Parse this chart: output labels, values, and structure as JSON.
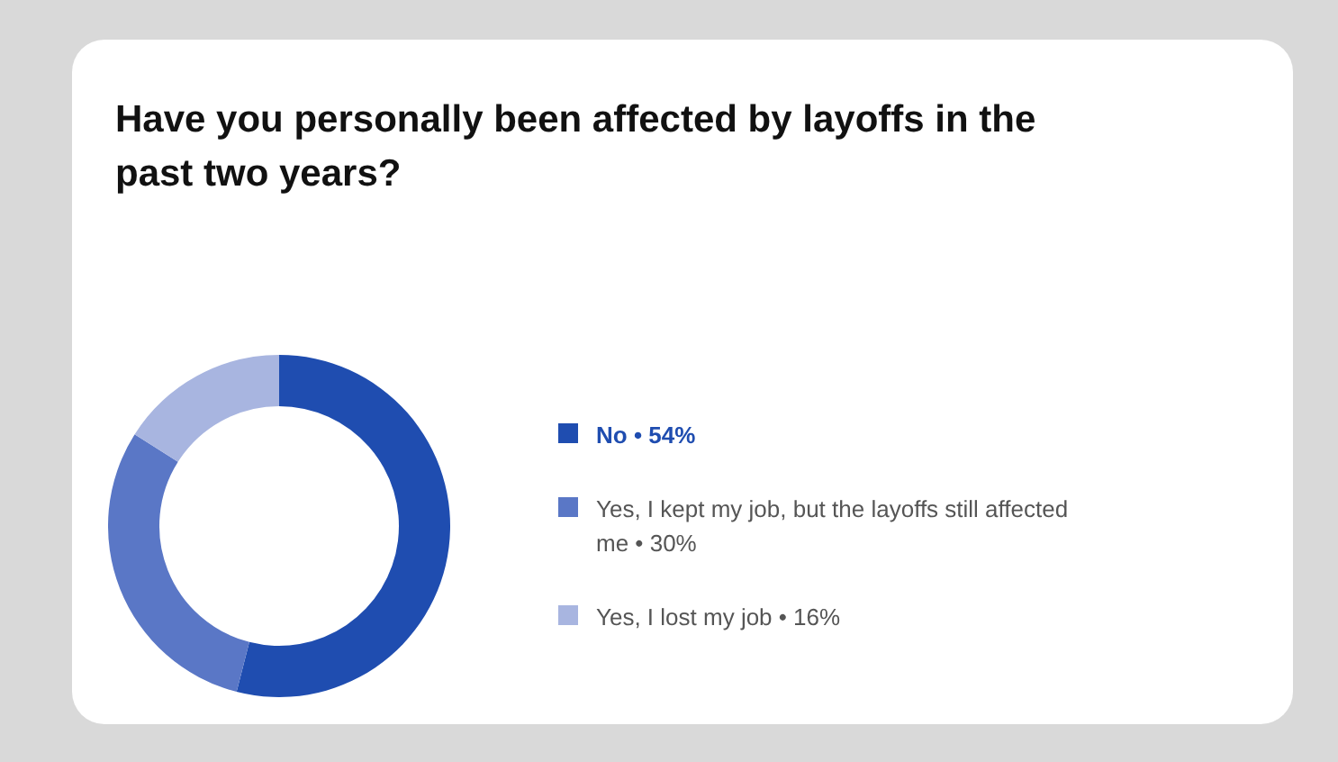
{
  "chart_data": {
    "type": "donut",
    "title": "Have you personally been affected by layoffs in the past two years?",
    "categories": [
      "No • 54%",
      "Yes, I kept my job, but the layoffs still affected me • 30%",
      "Yes, I lost my job • 16%"
    ],
    "values": [
      54,
      30,
      16
    ],
    "colors": [
      "#1f4db0",
      "#5a77c6",
      "#a8b5e0"
    ],
    "legend": "right"
  }
}
